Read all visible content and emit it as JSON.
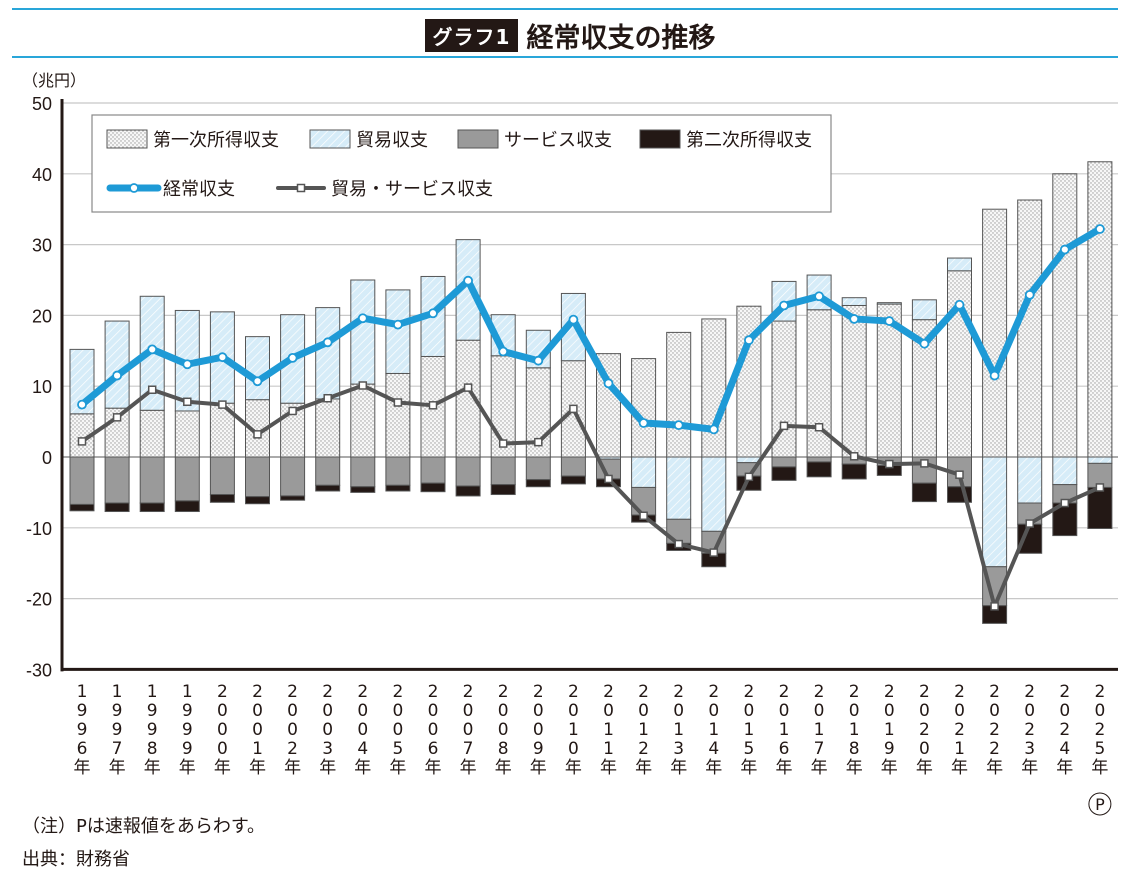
{
  "header": {
    "badge": "グラフ1",
    "title": "経常収支の推移",
    "unit": "（兆円）"
  },
  "footer": {
    "note": "（注）Pは速報値をあらわす。",
    "source": "出典：財務省"
  },
  "colors": {
    "rule": "#29a6d9",
    "primary_income": "#f3f3f3",
    "trade": "#d6ecf8",
    "services": "#9a9a9a",
    "secondary_income": "#231815",
    "current_account": "#1e9ad6",
    "trade_services": "#555555"
  },
  "legend": {
    "primary_income": "第一次所得収支",
    "trade": "貿易収支",
    "services": "サービス収支",
    "secondary_income": "第二次所得収支",
    "current_account": "経常収支",
    "trade_services": "貿易・サービス収支"
  },
  "chart_data": {
    "type": "bar",
    "stacked": true,
    "title": "経常収支の推移",
    "ylabel": "（兆円）",
    "xlabel": "",
    "ylim": [
      -30,
      50
    ],
    "yticks": [
      50,
      40,
      30,
      20,
      10,
      0,
      -10,
      -20,
      -30
    ],
    "grid": true,
    "legend_position": "top-left inside",
    "categories": [
      "1996年",
      "1997年",
      "1998年",
      "1999年",
      "2000年",
      "2001年",
      "2002年",
      "2003年",
      "2004年",
      "2005年",
      "2006年",
      "2007年",
      "2008年",
      "2009年",
      "2010年",
      "2011年",
      "2012年",
      "2013年",
      "2014年",
      "2015年",
      "2016年",
      "2017年",
      "2018年",
      "2019年",
      "2020年",
      "2021年",
      "2022年",
      "2023年",
      "2024年",
      "2025年(P)"
    ],
    "series": [
      {
        "name": "第一次所得収支",
        "type": "bar",
        "values": [
          6.1,
          6.9,
          6.6,
          6.5,
          7.6,
          8.1,
          7.6,
          8.2,
          10.3,
          11.8,
          14.2,
          16.5,
          14.3,
          12.6,
          13.6,
          14.6,
          13.9,
          17.6,
          19.5,
          21.3,
          19.2,
          20.8,
          21.4,
          21.6,
          19.4,
          26.3,
          35.0,
          36.3,
          40.0,
          41.7
        ]
      },
      {
        "name": "貿易収支",
        "type": "bar",
        "values": [
          9.1,
          12.3,
          16.1,
          14.2,
          12.9,
          8.9,
          12.5,
          12.9,
          14.7,
          11.8,
          11.3,
          14.2,
          5.8,
          5.3,
          9.5,
          -0.3,
          -4.3,
          -8.8,
          -10.5,
          -0.8,
          5.6,
          4.9,
          1.1,
          0.2,
          2.8,
          1.8,
          -15.5,
          -6.5,
          -3.9,
          -0.9
        ]
      },
      {
        "name": "サービス収支",
        "type": "bar",
        "values": [
          -6.7,
          -6.5,
          -6.5,
          -6.2,
          -5.3,
          -5.6,
          -5.5,
          -4.0,
          -4.2,
          -4.0,
          -3.7,
          -4.1,
          -3.9,
          -3.2,
          -2.7,
          -2.8,
          -3.9,
          -3.4,
          -3.1,
          -1.9,
          -1.4,
          -0.7,
          -1.0,
          -1.2,
          -3.7,
          -4.2,
          -5.5,
          -3.0,
          -2.6,
          -3.4
        ]
      },
      {
        "name": "第二次所得収支",
        "type": "bar",
        "values": [
          -0.9,
          -1.2,
          -1.2,
          -1.5,
          -1.1,
          -1.0,
          -0.6,
          -0.8,
          -0.8,
          -0.8,
          -1.2,
          -1.4,
          -1.4,
          -1.0,
          -1.1,
          -1.1,
          -1.0,
          -1.0,
          -1.9,
          -2.0,
          -1.9,
          -2.1,
          -2.1,
          -1.4,
          -2.6,
          -2.2,
          -2.5,
          -4.1,
          -4.6,
          -5.8
        ]
      },
      {
        "name": "経常収支",
        "type": "line",
        "values": [
          7.4,
          11.5,
          15.2,
          13.1,
          14.1,
          10.7,
          14.0,
          16.2,
          19.6,
          18.7,
          20.3,
          24.9,
          14.9,
          13.6,
          19.4,
          10.4,
          4.8,
          4.5,
          3.9,
          16.5,
          21.4,
          22.7,
          19.5,
          19.2,
          16.0,
          21.5,
          11.5,
          22.9,
          29.3,
          32.2
        ]
      },
      {
        "name": "貿易・サービス収支",
        "type": "line",
        "values": [
          2.2,
          5.6,
          9.5,
          7.8,
          7.4,
          3.2,
          6.5,
          8.3,
          10.1,
          7.7,
          7.3,
          9.8,
          1.9,
          2.1,
          6.8,
          -3.1,
          -8.3,
          -12.3,
          -13.5,
          -2.8,
          4.4,
          4.2,
          0.1,
          -1.0,
          -0.9,
          -2.5,
          -21.1,
          -9.4,
          -6.5,
          -4.3
        ]
      }
    ],
    "annotations": [
      "P = 速報値 (2025年)"
    ]
  }
}
